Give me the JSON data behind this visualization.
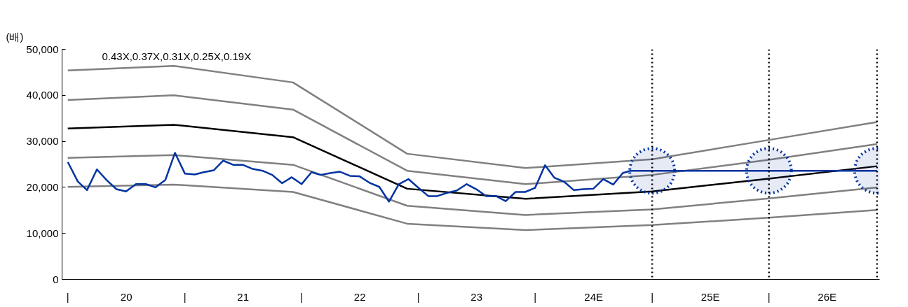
{
  "chart_data": {
    "type": "line",
    "ylabel": "(배)",
    "annotations": [
      "0.43X,0.37X,0.31X,0.25X,0.19X"
    ],
    "xlim": [
      "2019-12-14",
      "2026-12-13"
    ],
    "ylim": [
      0,
      50000
    ],
    "xticks": [
      {
        "value": "2020-01-01",
        "label": "|"
      },
      {
        "value": "2020-07-02",
        "label": "20"
      },
      {
        "value": "2021-01-01",
        "label": "|"
      },
      {
        "value": "2021-07-02",
        "label": "21"
      },
      {
        "value": "2022-01-01",
        "label": "|"
      },
      {
        "value": "2022-07-02",
        "label": "22"
      },
      {
        "value": "2023-01-01",
        "label": "|"
      },
      {
        "value": "2023-07-02",
        "label": "23"
      },
      {
        "value": "2024-01-01",
        "label": "|"
      },
      {
        "value": "2024-07-02",
        "label": "24E"
      },
      {
        "value": "2025-01-01",
        "label": "|"
      },
      {
        "value": "2025-07-02",
        "label": "25E"
      },
      {
        "value": "2026-01-01",
        "label": "|"
      },
      {
        "value": "2026-07-02",
        "label": "26E"
      }
    ],
    "yticks": [
      {
        "value": 0,
        "label": "0"
      },
      {
        "value": 10000,
        "label": "10,000"
      },
      {
        "value": 20000,
        "label": "20,000"
      },
      {
        "value": 30000,
        "label": "30,000"
      },
      {
        "value": 40000,
        "label": "40,000"
      },
      {
        "value": 50000,
        "label": "50,000"
      }
    ],
    "grid": false,
    "marker": "none",
    "line_style": "solid",
    "ref_lines": [
      {
        "axis": "x",
        "value": "2025-01-01",
        "label": null,
        "color": "#000000",
        "line_style": "dotted"
      },
      {
        "axis": "x",
        "value": "2026-01-01",
        "label": null,
        "color": "#000000",
        "line_style": "dotted"
      },
      {
        "axis": "x",
        "value": "2026-12-05",
        "label": null,
        "color": "#000000",
        "line_style": "dotted"
      }
    ],
    "series": [
      {
        "color": "#808080",
        "x": [
          "2020-01-01",
          "2020-11-27",
          "2021-12-05",
          "2022-11-27",
          "2023-12-02",
          "2025-01-01",
          "2026-01-01",
          "2026-12-05"
        ],
        "values": [
          45400,
          46400,
          42800,
          27300,
          24200,
          26100,
          30300,
          34200
        ]
      },
      {
        "color": "#808080",
        "x": [
          "2020-01-01",
          "2020-11-27",
          "2021-12-05",
          "2022-11-27",
          "2023-12-02",
          "2025-01-01",
          "2026-01-01",
          "2026-12-05"
        ],
        "values": [
          39000,
          40000,
          36900,
          23600,
          20700,
          22700,
          26000,
          29400
        ]
      },
      {
        "color": "#000000",
        "x": [
          "2020-01-01",
          "2020-11-27",
          "2021-12-05",
          "2022-11-27",
          "2023-12-02",
          "2025-01-01",
          "2026-01-01",
          "2026-12-05"
        ],
        "values": [
          32800,
          33600,
          30900,
          19700,
          17500,
          19100,
          21900,
          24600
        ]
      },
      {
        "color": "#808080",
        "x": [
          "2020-01-01",
          "2020-11-27",
          "2021-12-05",
          "2022-11-27",
          "2023-12-02",
          "2025-01-01",
          "2026-01-01",
          "2026-12-05"
        ],
        "values": [
          26400,
          27000,
          24900,
          16000,
          14000,
          15200,
          17600,
          20000
        ]
      },
      {
        "color": "#808080",
        "x": [
          "2020-01-01",
          "2020-11-27",
          "2021-12-05",
          "2022-11-27",
          "2023-12-02",
          "2025-01-01",
          "2026-01-01",
          "2026-12-05"
        ],
        "values": [
          20100,
          20600,
          19000,
          12100,
          10700,
          11800,
          13400,
          15100
        ]
      },
      {
        "color": "#0033a0",
        "x": [
          "2020-01",
          "2020-02",
          "2020-03",
          "2020-04",
          "2020-05",
          "2020-06",
          "2020-07",
          "2020-08",
          "2020-09",
          "2020-10",
          "2020-11",
          "2020-12",
          "2021-01",
          "2021-02",
          "2021-03",
          "2021-04",
          "2021-05",
          "2021-06",
          "2021-07",
          "2021-08",
          "2021-09",
          "2021-10",
          "2021-11",
          "2021-12",
          "2022-01",
          "2022-02",
          "2022-03",
          "2022-04",
          "2022-05",
          "2022-06",
          "2022-07",
          "2022-08",
          "2022-09",
          "2022-10",
          "2022-11",
          "2022-12",
          "2023-01",
          "2023-02",
          "2023-03",
          "2023-04",
          "2023-05",
          "2023-06",
          "2023-07",
          "2023-08",
          "2023-09",
          "2023-10",
          "2023-11",
          "2023-12",
          "2024-01",
          "2024-02",
          "2024-03",
          "2024-04",
          "2024-05",
          "2024-06",
          "2024-07",
          "2024-08",
          "2024-09",
          "2024-10",
          "2024-10-25",
          "2026-12-05"
        ],
        "values": [
          25500,
          21300,
          19400,
          23900,
          21600,
          19600,
          19100,
          20700,
          20700,
          20000,
          21600,
          27500,
          23000,
          22800,
          23300,
          23700,
          25800,
          24900,
          24900,
          24000,
          23600,
          22700,
          20900,
          22200,
          20700,
          23300,
          22700,
          23100,
          23400,
          22500,
          22400,
          21000,
          20100,
          16900,
          20700,
          21800,
          19900,
          18100,
          18100,
          18800,
          19300,
          20700,
          19600,
          18100,
          18100,
          17000,
          19000,
          19000,
          19900,
          24800,
          22100,
          21200,
          19400,
          19600,
          19700,
          21800,
          20600,
          23100,
          23600,
          23600
        ]
      },
      {
        "type": "scatter",
        "color": "#0033a0",
        "marker": "circle",
        "line_style": "dotted",
        "x": [
          "2025-01-01",
          "2026-01-01",
          "2026-12-05"
        ],
        "values": [
          23600,
          23600,
          23600
        ]
      }
    ]
  }
}
